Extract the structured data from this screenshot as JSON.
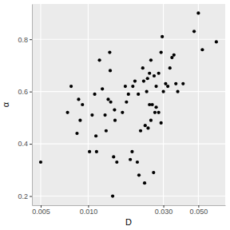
{
  "chart_data": {
    "type": "scatter",
    "x_label": "D",
    "y_label": "α",
    "x": [
      0.005,
      0.0074,
      0.0078,
      0.0085,
      0.0087,
      0.0089,
      0.0092,
      0.0102,
      0.0106,
      0.011,
      0.0112,
      0.0113,
      0.0118,
      0.0123,
      0.0128,
      0.013,
      0.0134,
      0.0137,
      0.0138,
      0.0139,
      0.0143,
      0.0145,
      0.0147,
      0.0148,
      0.0152,
      0.0165,
      0.0172,
      0.0175,
      0.018,
      0.0185,
      0.019,
      0.0192,
      0.0198,
      0.0205,
      0.0208,
      0.021,
      0.0215,
      0.0222,
      0.0225,
      0.0228,
      0.023,
      0.0235,
      0.0238,
      0.024,
      0.0245,
      0.0245,
      0.025,
      0.025,
      0.0255,
      0.026,
      0.0262,
      0.0265,
      0.027,
      0.027,
      0.028,
      0.028,
      0.029,
      0.029,
      0.0295,
      0.03,
      0.031,
      0.032,
      0.033,
      0.034,
      0.035,
      0.036,
      0.037,
      0.04,
      0.047,
      0.05,
      0.053,
      0.065
    ],
    "values": [
      0.33,
      0.52,
      0.62,
      0.44,
      0.57,
      0.49,
      0.55,
      0.37,
      0.51,
      0.59,
      0.43,
      0.37,
      0.72,
      0.61,
      0.51,
      0.45,
      0.57,
      0.75,
      0.68,
      0.56,
      0.2,
      0.35,
      0.53,
      0.49,
      0.33,
      0.52,
      0.62,
      0.56,
      0.59,
      0.34,
      0.37,
      0.62,
      0.64,
      0.33,
      0.59,
      0.28,
      0.45,
      0.69,
      0.64,
      0.25,
      0.47,
      0.6,
      0.65,
      0.46,
      0.67,
      0.55,
      0.49,
      0.72,
      0.55,
      0.29,
      0.66,
      0.52,
      0.62,
      0.54,
      0.67,
      0.52,
      0.75,
      0.48,
      0.81,
      0.6,
      0.63,
      0.62,
      0.69,
      0.73,
      0.74,
      0.63,
      0.6,
      0.63,
      0.83,
      0.9,
      0.76,
      0.79
    ],
    "color": "#000000",
    "marker": "circle",
    "log": "x",
    "grid": true,
    "xlim": [
      0.0044,
      0.074
    ],
    "xticks": [
      0.005,
      {
        "value": 0.01,
        "label": "0.010"
      },
      {
        "value": 0.03,
        "label": "0.030"
      },
      {
        "value": 0.05,
        "label": "0.050"
      }
    ],
    "ylim": [
      0.165,
      0.935
    ],
    "yticks": [
      0.2,
      0.4,
      0.6,
      0.8
    ]
  }
}
